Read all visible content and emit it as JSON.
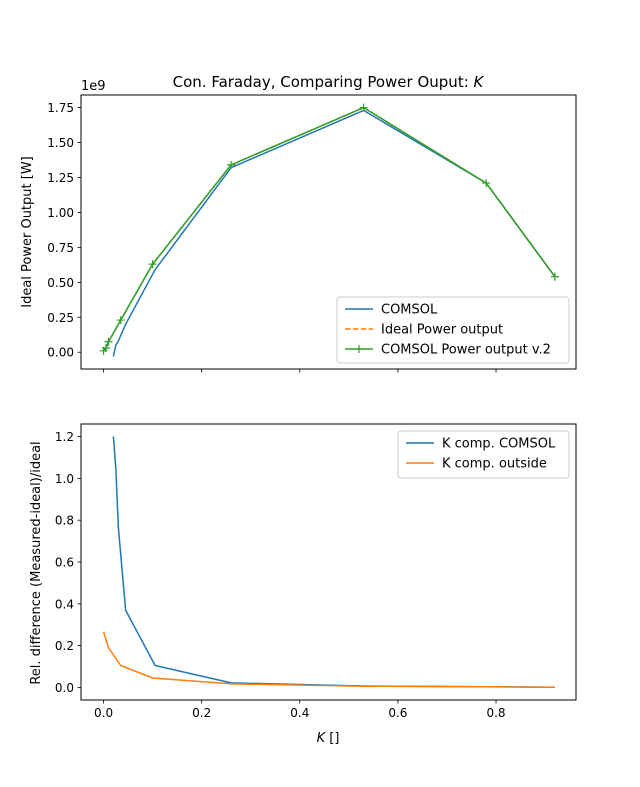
{
  "colors": {
    "blue": "#1f77b4",
    "orange": "#ff7f0e",
    "green": "#2ca02c"
  },
  "chart_data": [
    {
      "type": "line",
      "title": "Con. Faraday, Comparing Power Ouput: ",
      "title_symbol": "K",
      "ylabel": "Ideal Power Output [W]",
      "y_offset_label": "1e9",
      "xlim": [
        -0.046,
        0.963
      ],
      "ylim": [
        -0.12,
        1.84
      ],
      "yticks": [
        0.0,
        0.25,
        0.5,
        0.75,
        1.0,
        1.25,
        1.5,
        1.75
      ],
      "ytick_labels": [
        "0.00",
        "0.25",
        "0.50",
        "0.75",
        "1.00",
        "1.25",
        "1.50",
        "1.75"
      ],
      "xticks": [
        0.0,
        0.2,
        0.4,
        0.6,
        0.8
      ],
      "grid": false,
      "legend_position": "lower-right",
      "series": [
        {
          "name": "COMSOL",
          "color": "#1f77b4",
          "style": "solid",
          "x": [
            0.02,
            0.025,
            0.03,
            0.045,
            0.105,
            0.26,
            0.53,
            0.78,
            0.92
          ],
          "y": [
            -0.03,
            0.05,
            0.08,
            0.2,
            0.59,
            1.32,
            1.73,
            1.21,
            0.54
          ]
        },
        {
          "name": "Ideal Power output",
          "color": "#ff7f0e",
          "style": "dashed",
          "x": [
            0.0,
            0.005,
            0.01,
            0.035,
            0.1,
            0.26,
            0.53,
            0.78,
            0.92
          ],
          "y": [
            0.01,
            0.03,
            0.075,
            0.23,
            0.63,
            1.34,
            1.75,
            1.21,
            0.54
          ]
        },
        {
          "name": "COMSOL Power output v.2",
          "color": "#2ca02c",
          "style": "solid",
          "marker": "+",
          "x": [
            0.0,
            0.005,
            0.01,
            0.035,
            0.1,
            0.26,
            0.53,
            0.78,
            0.92
          ],
          "y": [
            0.01,
            0.03,
            0.075,
            0.23,
            0.63,
            1.34,
            1.75,
            1.21,
            0.54
          ]
        }
      ]
    },
    {
      "type": "line",
      "ylabel": "Rel. difference (Measured-ideal)/ideal",
      "xlabel": "K []",
      "xlabel_symbol": "K",
      "xlabel_unit": " []",
      "xlim": [
        -0.046,
        0.963
      ],
      "ylim": [
        -0.06,
        1.26
      ],
      "yticks": [
        0.0,
        0.2,
        0.4,
        0.6,
        0.8,
        1.0,
        1.2
      ],
      "ytick_labels": [
        "0.0",
        "0.2",
        "0.4",
        "0.6",
        "0.8",
        "1.0",
        "1.2"
      ],
      "xticks": [
        0.0,
        0.2,
        0.4,
        0.6,
        0.8
      ],
      "xtick_labels": [
        "0.0",
        "0.2",
        "0.4",
        "0.6",
        "0.8"
      ],
      "grid": false,
      "legend_position": "top-right",
      "series": [
        {
          "name": "K comp. COMSOL",
          "color": "#1f77b4",
          "style": "solid",
          "x": [
            0.02,
            0.025,
            0.03,
            0.045,
            0.105,
            0.26,
            0.53,
            0.78,
            0.92
          ],
          "y": [
            1.2,
            1.05,
            0.77,
            0.37,
            0.105,
            0.022,
            0.007,
            0.003,
            0.001
          ]
        },
        {
          "name": "K comp. outside",
          "color": "#ff7f0e",
          "style": "solid",
          "x": [
            0.0,
            0.01,
            0.035,
            0.1,
            0.26,
            0.53,
            0.78,
            0.92
          ],
          "y": [
            0.265,
            0.19,
            0.105,
            0.045,
            0.017,
            0.006,
            0.003,
            0.001
          ]
        }
      ]
    }
  ]
}
